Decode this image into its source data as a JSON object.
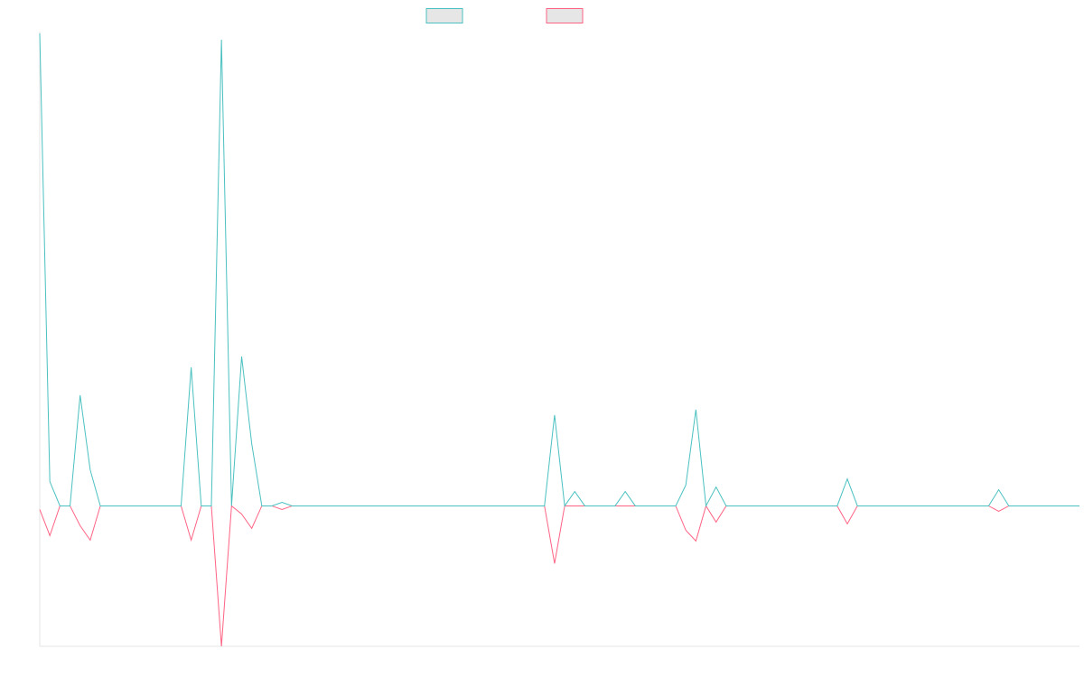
{
  "chart_data": {
    "type": "line",
    "title": "",
    "xlabel": "",
    "ylabel": "",
    "grid": false,
    "legend_position": "top-center",
    "x": [
      0,
      1,
      2,
      3,
      4,
      5,
      6,
      7,
      8,
      9,
      10,
      11,
      12,
      13,
      14,
      15,
      16,
      17,
      18,
      19,
      20,
      21,
      22,
      23,
      24,
      25,
      26,
      27,
      28,
      29,
      30,
      31,
      32,
      33,
      34,
      35,
      36,
      37,
      38,
      39,
      40,
      41,
      42,
      43,
      44,
      45,
      46,
      47,
      48,
      49,
      50,
      51,
      52,
      53,
      54,
      55,
      56,
      57,
      58,
      59,
      60,
      61,
      62,
      63,
      64,
      65,
      66,
      67,
      68,
      69,
      70,
      71,
      72,
      73,
      74,
      75,
      76,
      77,
      78,
      79,
      80,
      81,
      82,
      83,
      84,
      85,
      86,
      87,
      88,
      89,
      90,
      91,
      92,
      93,
      94,
      95,
      96,
      97,
      98,
      99,
      100,
      101,
      102,
      103
    ],
    "ylim": [
      -156,
      525
    ],
    "series": [
      {
        "color": "#4bc0c0",
        "values": [
          525,
          27,
          0,
          0,
          123,
          40,
          0,
          0,
          0,
          0,
          0,
          0,
          0,
          0,
          0,
          154,
          0,
          0,
          518,
          0,
          166,
          69,
          0,
          0,
          4,
          0,
          0,
          0,
          0,
          0,
          0,
          0,
          0,
          0,
          0,
          0,
          0,
          0,
          0,
          0,
          0,
          0,
          0,
          0,
          0,
          0,
          0,
          0,
          0,
          0,
          0,
          101,
          0,
          16,
          0,
          0,
          0,
          0,
          16,
          0,
          0,
          0,
          0,
          0,
          23,
          107,
          0,
          21,
          0,
          0,
          0,
          0,
          0,
          0,
          0,
          0,
          0,
          0,
          0,
          0,
          30,
          0,
          0,
          0,
          0,
          0,
          0,
          0,
          0,
          0,
          0,
          0,
          0,
          0,
          0,
          18,
          0,
          0,
          0,
          0,
          0,
          0,
          0,
          0
        ]
      },
      {
        "color": "#ff6384",
        "values": [
          -4,
          -33,
          0,
          0,
          -22,
          -38,
          0,
          0,
          0,
          0,
          0,
          0,
          0,
          0,
          0,
          -38,
          0,
          0,
          -156,
          0,
          -9,
          -25,
          0,
          0,
          -4,
          0,
          0,
          0,
          0,
          0,
          0,
          0,
          0,
          0,
          0,
          0,
          0,
          0,
          0,
          0,
          0,
          0,
          0,
          0,
          0,
          0,
          0,
          0,
          0,
          0,
          0,
          -64,
          0,
          0,
          0,
          0,
          0,
          0,
          0,
          0,
          0,
          0,
          0,
          0,
          -27,
          -39,
          0,
          -18,
          0,
          0,
          0,
          0,
          0,
          0,
          0,
          0,
          0,
          0,
          0,
          0,
          -20,
          0,
          0,
          0,
          0,
          0,
          0,
          0,
          0,
          0,
          0,
          0,
          0,
          0,
          0,
          -6,
          0,
          0,
          0,
          0,
          0,
          0,
          0,
          0
        ]
      }
    ]
  }
}
